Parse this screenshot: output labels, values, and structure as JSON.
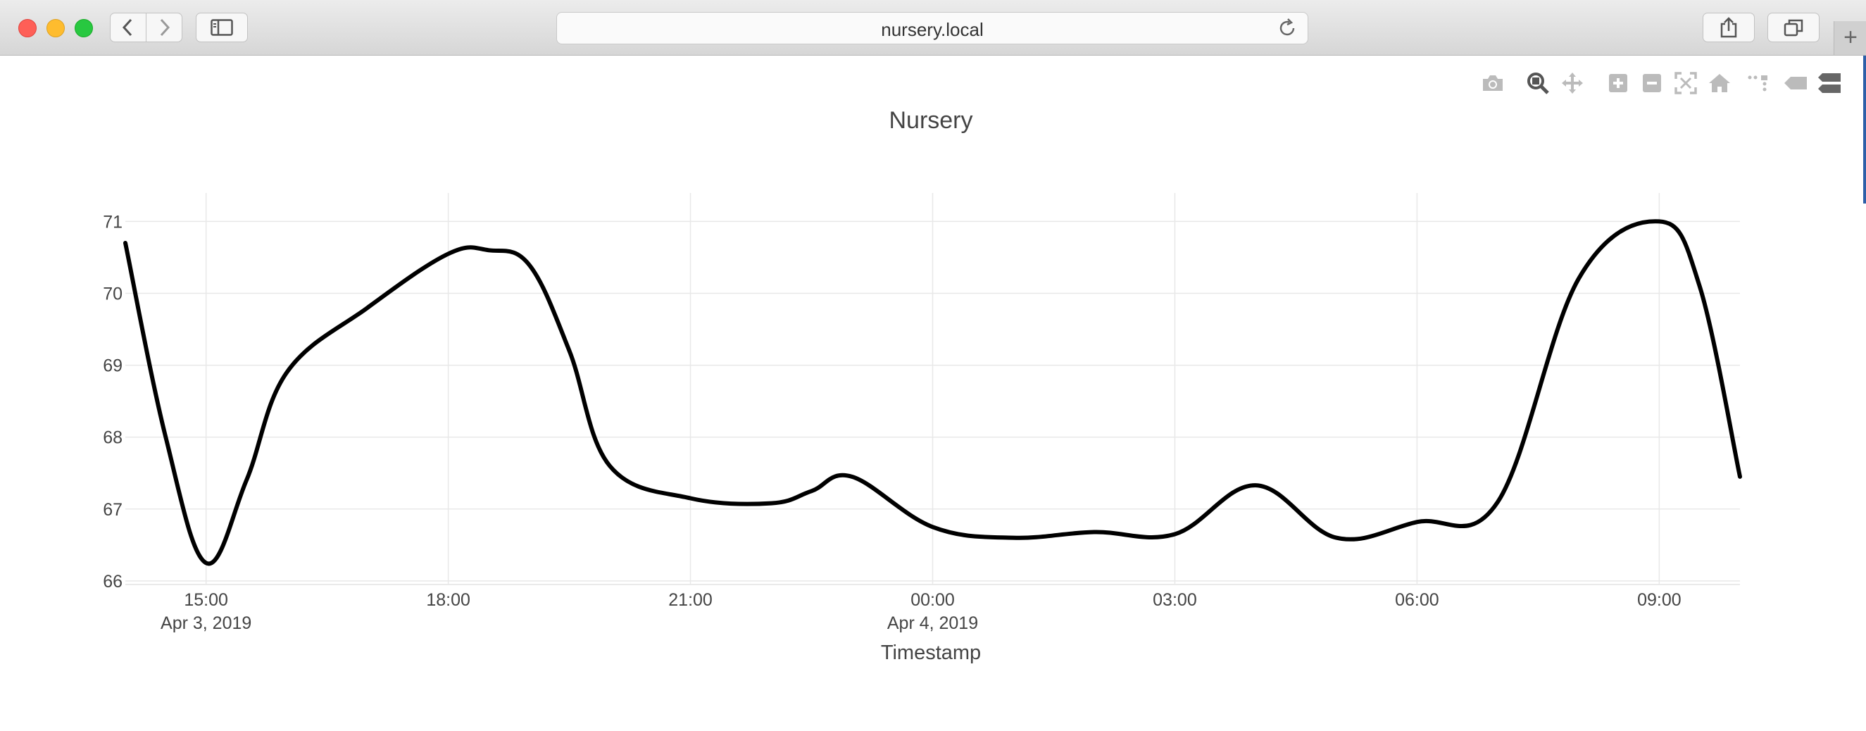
{
  "browser": {
    "url": "nursery.local",
    "icons": [
      "back-icon",
      "forward-icon",
      "sidebar-icon",
      "reload-icon",
      "share-icon",
      "tabs-icon",
      "new-tab-icon"
    ]
  },
  "toolbar": {
    "icons": [
      "camera-icon",
      "zoom-icon",
      "pan-icon",
      "zoom-in-icon",
      "zoom-out-icon",
      "autoscale-icon",
      "reset-axes-icon",
      "spike-lines-icon",
      "hover-closest-icon",
      "hover-compare-icon"
    ]
  },
  "chart_data": {
    "type": "line",
    "title": "Nursery",
    "xlabel": "Timestamp",
    "ylabel": "",
    "x_tick_labels": [
      "15:00",
      "18:00",
      "21:00",
      "00:00",
      "03:00",
      "06:00",
      "09:00"
    ],
    "x_tick_sublabels": [
      "Apr 3, 2019",
      "",
      "",
      "Apr 4, 2019",
      "",
      "",
      ""
    ],
    "y_tick_labels": [
      "66",
      "67",
      "68",
      "69",
      "70",
      "71"
    ],
    "ylim": [
      65.95,
      71.2
    ],
    "xlim": [
      "2019-04-03 14:00",
      "2019-04-04 10:00"
    ],
    "grid": true,
    "line_color": "#000000",
    "series": [
      {
        "x": [
          "2019-04-03 14:00",
          "2019-04-03 14:30",
          "2019-04-03 15:00",
          "2019-04-03 15:30",
          "2019-04-03 16:00",
          "2019-04-03 17:00",
          "2019-04-03 18:00",
          "2019-04-03 18:30",
          "2019-04-03 19:00",
          "2019-04-03 19:30",
          "2019-04-03 20:00",
          "2019-04-03 21:00",
          "2019-04-03 22:00",
          "2019-04-03 22:30",
          "2019-04-03 23:00",
          "2019-04-04 00:00",
          "2019-04-04 01:00",
          "2019-04-04 02:00",
          "2019-04-04 03:00",
          "2019-04-04 04:00",
          "2019-04-04 05:00",
          "2019-04-04 06:00",
          "2019-04-04 07:00",
          "2019-04-04 08:00",
          "2019-04-04 09:00",
          "2019-04-04 09:30",
          "2019-04-04 10:00"
        ],
        "y": [
          70.7,
          68.0,
          66.25,
          67.4,
          68.9,
          69.8,
          70.55,
          70.6,
          70.4,
          69.2,
          67.6,
          67.15,
          67.08,
          67.25,
          67.45,
          66.75,
          66.6,
          66.68,
          66.65,
          67.33,
          66.6,
          66.82,
          67.1,
          70.2,
          71.0,
          70.1,
          67.45
        ]
      }
    ]
  }
}
